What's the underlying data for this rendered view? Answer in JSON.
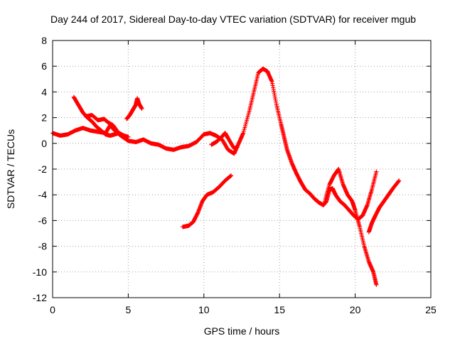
{
  "chart_data": {
    "type": "scatter",
    "title": "Day 244 of 2017, Sidereal Day-to-day VTEC variation (SDTVAR) for receiver mgub",
    "xlabel": "GPS time / hours",
    "ylabel": "SDTVAR / TECUs",
    "xlim": [
      0,
      25
    ],
    "ylim": [
      -12,
      8
    ],
    "xticks": [
      0,
      5,
      10,
      15,
      20,
      25
    ],
    "yticks": [
      -12,
      -10,
      -8,
      -6,
      -4,
      -2,
      0,
      2,
      4,
      6,
      8
    ],
    "grid": true,
    "marker": "+",
    "color": "#ff0000",
    "series": [
      {
        "values": [
          [
            0,
            0.8
          ],
          [
            0.5,
            0.6
          ],
          [
            1.0,
            0.7
          ],
          [
            1.5,
            1.0
          ],
          [
            2.0,
            1.2
          ],
          [
            2.5,
            1.0
          ],
          [
            3.0,
            0.9
          ],
          [
            3.5,
            0.8
          ],
          [
            3.8,
            1.4
          ],
          [
            4.1,
            1.0
          ],
          [
            4.5,
            0.6
          ],
          [
            5.0,
            0.2
          ],
          [
            5.5,
            0.1
          ],
          [
            6.0,
            0.3
          ],
          [
            6.5,
            0.0
          ],
          [
            7.0,
            -0.1
          ],
          [
            7.5,
            -0.4
          ],
          [
            8.0,
            -0.5
          ],
          [
            8.5,
            -0.3
          ],
          [
            9.0,
            -0.2
          ],
          [
            9.5,
            0.1
          ],
          [
            10.0,
            0.7
          ],
          [
            10.4,
            0.8
          ],
          [
            10.8,
            0.6
          ],
          [
            11.2,
            0.3
          ],
          [
            11.6,
            -0.5
          ],
          [
            12.0,
            -0.8
          ],
          [
            12.3,
            0.0
          ],
          [
            12.6,
            0.8
          ],
          [
            13.0,
            2.5
          ],
          [
            13.3,
            4.0
          ],
          [
            13.6,
            5.5
          ],
          [
            13.9,
            5.8
          ],
          [
            14.2,
            5.6
          ],
          [
            14.5,
            4.8
          ],
          [
            14.8,
            3.0
          ],
          [
            15.1,
            1.5
          ],
          [
            15.3,
            0.5
          ],
          [
            15.5,
            -0.5
          ],
          [
            15.8,
            -1.5
          ],
          [
            16.1,
            -2.3
          ],
          [
            16.4,
            -3.0
          ],
          [
            16.7,
            -3.6
          ],
          [
            17.0,
            -3.9
          ],
          [
            17.3,
            -4.3
          ],
          [
            17.6,
            -4.6
          ],
          [
            17.9,
            -4.8
          ],
          [
            18.1,
            -4.5
          ],
          [
            18.3,
            -3.6
          ],
          [
            18.5,
            -3.5
          ],
          [
            18.7,
            -4.0
          ],
          [
            19.0,
            -4.5
          ],
          [
            19.3,
            -4.8
          ],
          [
            19.6,
            -5.2
          ],
          [
            19.9,
            -5.6
          ],
          [
            20.2,
            -5.9
          ],
          [
            20.5,
            -5.6
          ],
          [
            20.8,
            -4.8
          ],
          [
            21.1,
            -3.6
          ],
          [
            21.4,
            -2.2
          ]
        ]
      },
      {
        "values": [
          [
            1.4,
            3.6
          ],
          [
            1.7,
            3.0
          ],
          [
            2.0,
            2.4
          ],
          [
            2.3,
            2.0
          ],
          [
            2.6,
            1.7
          ],
          [
            2.9,
            1.3
          ],
          [
            3.2,
            1.0
          ],
          [
            3.5,
            0.7
          ],
          [
            3.8,
            0.6
          ],
          [
            4.1,
            0.7
          ],
          [
            4.4,
            0.8
          ],
          [
            4.7,
            0.6
          ],
          [
            5.0,
            0.5
          ]
        ]
      },
      {
        "values": [
          [
            2.2,
            2.1
          ],
          [
            2.6,
            2.2
          ],
          [
            3.0,
            1.8
          ],
          [
            3.4,
            1.9
          ],
          [
            3.7,
            1.6
          ],
          [
            4.0,
            1.4
          ],
          [
            4.3,
            0.9
          ]
        ]
      },
      {
        "values": [
          [
            4.9,
            1.9
          ],
          [
            5.1,
            2.2
          ],
          [
            5.3,
            2.6
          ],
          [
            5.5,
            3.0
          ],
          [
            5.6,
            3.5
          ],
          [
            5.7,
            3.1
          ],
          [
            5.9,
            2.7
          ]
        ]
      },
      {
        "values": [
          [
            8.6,
            -6.5
          ],
          [
            9.0,
            -6.4
          ],
          [
            9.3,
            -6.1
          ],
          [
            9.6,
            -5.4
          ],
          [
            9.9,
            -4.5
          ],
          [
            10.2,
            -4.0
          ],
          [
            10.6,
            -3.8
          ],
          [
            11.0,
            -3.4
          ],
          [
            11.4,
            -2.9
          ],
          [
            11.8,
            -2.5
          ]
        ]
      },
      {
        "values": [
          [
            10.5,
            -0.1
          ],
          [
            10.8,
            0.1
          ],
          [
            11.1,
            0.4
          ],
          [
            11.4,
            0.8
          ],
          [
            11.6,
            0.4
          ],
          [
            12.0,
            -0.4
          ],
          [
            12.2,
            -0.3
          ]
        ]
      },
      {
        "values": [
          [
            18.0,
            -4.5
          ],
          [
            18.3,
            -3.2
          ],
          [
            18.6,
            -2.5
          ],
          [
            18.9,
            -2.0
          ],
          [
            19.2,
            -3.2
          ],
          [
            19.5,
            -4.0
          ],
          [
            19.8,
            -4.5
          ],
          [
            20.0,
            -5.2
          ],
          [
            20.3,
            -6.5
          ],
          [
            20.6,
            -8.0
          ],
          [
            20.9,
            -9.2
          ],
          [
            21.2,
            -10.0
          ],
          [
            21.4,
            -11.0
          ]
        ]
      },
      {
        "values": [
          [
            20.9,
            -6.9
          ],
          [
            21.1,
            -6.2
          ],
          [
            21.3,
            -5.7
          ],
          [
            21.6,
            -5.0
          ],
          [
            21.9,
            -4.5
          ],
          [
            22.2,
            -4.0
          ],
          [
            22.5,
            -3.5
          ],
          [
            22.9,
            -2.9
          ]
        ]
      }
    ]
  }
}
